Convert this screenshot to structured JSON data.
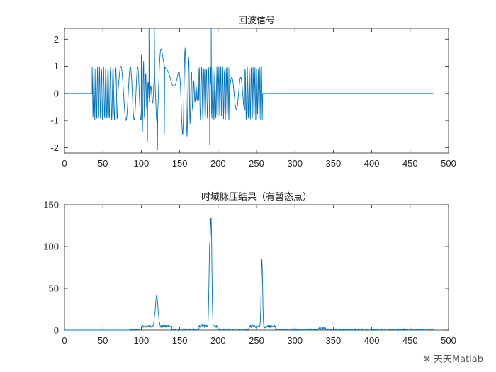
{
  "chart_data": [
    {
      "type": "line",
      "title": "回波信号",
      "xlabel": "",
      "ylabel": "",
      "xlim": [
        0,
        500
      ],
      "ylim": [
        -2.2,
        2.4
      ],
      "xticks": [
        0,
        50,
        100,
        150,
        200,
        250,
        300,
        350,
        400,
        450,
        500
      ],
      "yticks": [
        2,
        1,
        0,
        -1,
        -2
      ],
      "grid": false,
      "series": [
        {
          "color": "#0072BD",
          "segments": [
            {
              "x0": 0,
              "x1": 36,
              "kind": "flat",
              "value": 0
            },
            {
              "x0": 36,
              "x1": 70,
              "kind": "chirp",
              "amp": 1.0,
              "f0": 0.9,
              "f1": 0.5
            },
            {
              "x0": 70,
              "x1": 100,
              "kind": "chirp",
              "amp": 1.0,
              "f0": 0.12,
              "f1": 0.25
            },
            {
              "x0": 100,
              "x1": 175,
              "kind": "mix",
              "amp": 1.4,
              "spikes": [
                [
                  108,
                  -1.8
                ],
                [
                  110,
                  2.4
                ],
                [
                  117,
                  2.4
                ],
                [
                  121,
                  -2.1
                ],
                [
                  130,
                  -1.5
                ]
              ]
            },
            {
              "x0": 175,
              "x1": 215,
              "kind": "chirp",
              "amp": 1.0,
              "f0": 0.6,
              "f1": 0.9,
              "spikes": [
                [
                  189,
                  -1.9
                ],
                [
                  191,
                  2.4
                ],
                [
                  196,
                  -1.2
                ]
              ]
            },
            {
              "x0": 215,
              "x1": 235,
              "kind": "chirp",
              "amp": 0.6,
              "f0": 0.15,
              "f1": 0.2
            },
            {
              "x0": 235,
              "x1": 258,
              "kind": "chirp",
              "amp": 1.0,
              "f0": 0.7,
              "f1": 1.0
            },
            {
              "x0": 258,
              "x1": 480,
              "kind": "flat",
              "value": 0
            }
          ]
        }
      ]
    },
    {
      "type": "line",
      "title": "时域脉压结果（有暂态点）",
      "xlabel": "",
      "ylabel": "",
      "xlim": [
        0,
        500
      ],
      "ylim": [
        0,
        150
      ],
      "xticks": [
        0,
        50,
        100,
        150,
        200,
        250,
        300,
        350,
        400,
        450,
        500
      ],
      "yticks": [
        150,
        100,
        50,
        0
      ],
      "grid": false,
      "series": [
        {
          "color": "#0072BD",
          "peaks": [
            {
              "x": 120,
              "y": 37
            },
            {
              "x": 189,
              "y": 86
            },
            {
              "x": 191,
              "y": 124
            },
            {
              "x": 257,
              "y": 82
            }
          ],
          "noise_range": [
            85,
            480
          ]
        }
      ]
    }
  ],
  "watermark": {
    "icon": "wechat-icon",
    "text": "天天Matlab"
  }
}
